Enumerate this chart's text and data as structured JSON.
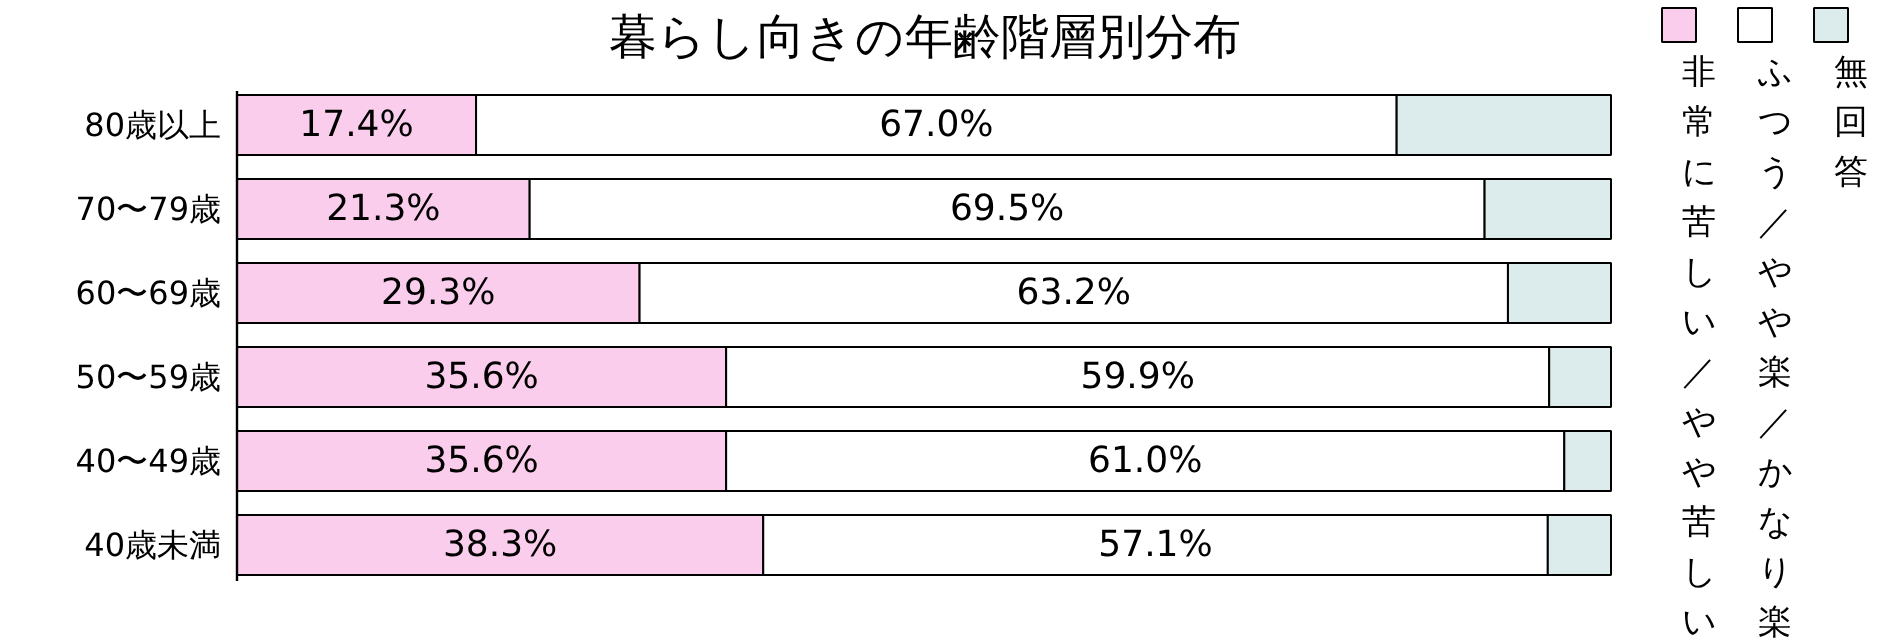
{
  "chart_data": {
    "type": "bar",
    "orientation": "horizontal",
    "stacked": true,
    "title": "暮らし向きの年齢階層別分布",
    "categories": [
      "80歳以上",
      "70〜79歳",
      "60〜69歳",
      "50〜59歳",
      "40〜49歳",
      "40歳未満"
    ],
    "series": [
      {
        "name": "非常に苦しい／やや苦しい",
        "color": "#fbcdec",
        "values": [
          17.4,
          21.3,
          29.3,
          35.6,
          35.6,
          38.3
        ],
        "value_labels": [
          "17.4%",
          "21.3%",
          "29.3%",
          "35.6%",
          "35.6%",
          "38.3%"
        ]
      },
      {
        "name": "ふつう／やや楽／かなり楽",
        "color": "#ffffff",
        "values": [
          67.0,
          69.5,
          63.2,
          59.9,
          61.0,
          57.1
        ],
        "value_labels": [
          "67.0%",
          "69.5%",
          "63.2%",
          "59.9%",
          "61.0%",
          "57.1%"
        ]
      },
      {
        "name": "無回答",
        "color": "#dcebec",
        "values": [
          15.6,
          9.2,
          7.5,
          4.5,
          3.4,
          4.6
        ]
      }
    ],
    "legend": "right"
  }
}
